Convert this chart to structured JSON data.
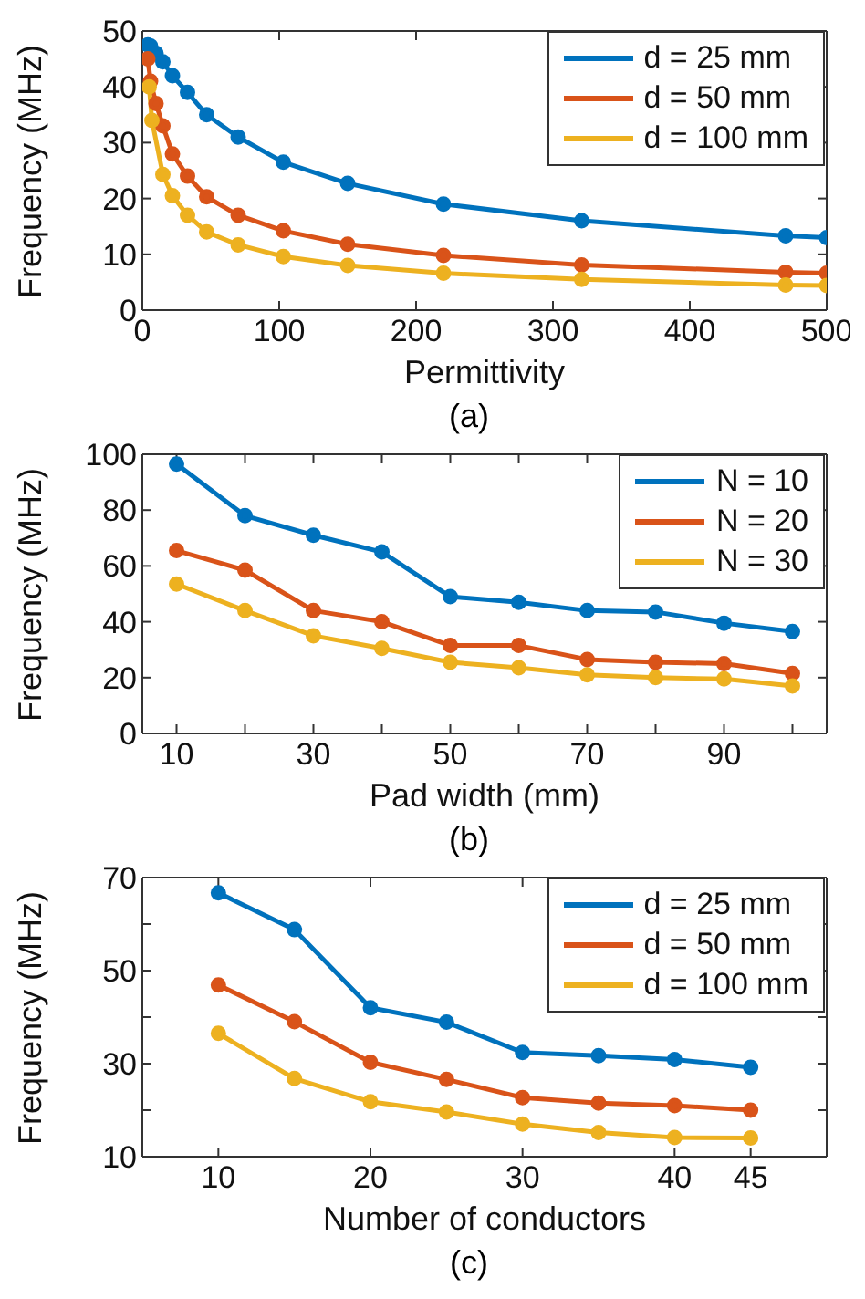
{
  "chart_data": [
    {
      "type": "line",
      "xlabel": "Permittivity",
      "ylabel": "Frequency (MHz)",
      "annotations": [
        "(a)"
      ],
      "xlim": [
        0,
        500
      ],
      "xticks": [
        0,
        100,
        200,
        300,
        400,
        500
      ],
      "ylim": [
        0,
        50
      ],
      "yticks": [
        0,
        10,
        20,
        30,
        40,
        50
      ],
      "grid": false,
      "legend": "top right",
      "marker": "circle",
      "line_style": "solid",
      "series": [
        {
          "name": "d = 25 mm",
          "color": "#0072bd",
          "x": [
            4,
            6,
            10,
            15,
            22,
            33,
            47,
            70,
            103,
            150,
            220,
            321,
            470,
            500
          ],
          "values": [
            47.5,
            47.3,
            46,
            44.5,
            42,
            39,
            35,
            31,
            26.5,
            22.7,
            19,
            16,
            13.3,
            13
          ]
        },
        {
          "name": "d = 50 mm",
          "color": "#d95319",
          "x": [
            4,
            6,
            10,
            15,
            22,
            33,
            47,
            70,
            103,
            150,
            220,
            321,
            470,
            500
          ],
          "values": [
            45,
            41,
            37,
            33,
            28,
            24,
            20.3,
            17,
            14.2,
            11.8,
            9.8,
            8.1,
            6.8,
            6.6
          ]
        },
        {
          "name": "d = 100 mm",
          "color": "#edb120",
          "x": [
            5,
            7,
            15,
            22,
            33,
            47,
            70,
            103,
            150,
            220,
            321,
            470,
            500
          ],
          "values": [
            40,
            34,
            24.3,
            20.5,
            17,
            14,
            11.7,
            9.6,
            8,
            6.6,
            5.5,
            4.5,
            4.4
          ]
        }
      ]
    },
    {
      "type": "line",
      "xlabel": "Pad width (mm)",
      "ylabel": "Frequency (MHz)",
      "annotations": [
        "(b)"
      ],
      "xlim": [
        5,
        105
      ],
      "xticks": [
        10,
        {
          "value": 20,
          "label": null
        },
        30,
        {
          "value": 40,
          "label": null
        },
        50,
        {
          "value": 60,
          "label": null
        },
        70,
        {
          "value": 80,
          "label": null
        },
        90,
        {
          "value": 100,
          "label": null
        }
      ],
      "ylim": [
        0,
        100
      ],
      "yticks": [
        0,
        20,
        40,
        60,
        80,
        100
      ],
      "grid": false,
      "legend": "top right",
      "marker": "circle",
      "line_style": "solid",
      "series": [
        {
          "name": "N = 10",
          "color": "#0072bd",
          "x": [
            10,
            20,
            30,
            40,
            50,
            60,
            70,
            80,
            90,
            100
          ],
          "values": [
            96.5,
            78,
            71,
            65,
            49,
            47,
            44,
            43.5,
            39.5,
            36.5
          ]
        },
        {
          "name": "N = 20",
          "color": "#d95319",
          "x": [
            10,
            20,
            30,
            40,
            50,
            60,
            70,
            80,
            90,
            100
          ],
          "values": [
            65.5,
            58.5,
            44,
            40,
            31.5,
            31.5,
            26.5,
            25.5,
            25,
            21.5
          ]
        },
        {
          "name": "N = 30",
          "color": "#edb120",
          "x": [
            10,
            20,
            30,
            40,
            50,
            60,
            70,
            80,
            90,
            100
          ],
          "values": [
            53.5,
            44,
            35,
            30.5,
            25.5,
            23.5,
            21,
            20,
            19.5,
            17
          ]
        }
      ]
    },
    {
      "type": "line",
      "xlabel": "Number of conductors",
      "ylabel": "Frequency (MHz)",
      "annotations": [
        "(c)"
      ],
      "xlim": [
        5,
        50
      ],
      "xticks": [
        10,
        20,
        30,
        40,
        45
      ],
      "ylim": [
        10,
        70
      ],
      "yticks": [
        10,
        {
          "value": 20,
          "label": null
        },
        30,
        {
          "value": 40,
          "label": null
        },
        50,
        {
          "value": 60,
          "label": null
        },
        70
      ],
      "grid": false,
      "legend": "top right",
      "marker": "circle",
      "line_style": "solid",
      "series": [
        {
          "name": "d = 25 mm",
          "color": "#0072bd",
          "x": [
            10,
            15,
            20,
            25,
            30,
            35,
            40,
            45
          ],
          "values": [
            66.7,
            58.8,
            42,
            38.9,
            32.4,
            31.7,
            30.9,
            29.2
          ]
        },
        {
          "name": "d = 50 mm",
          "color": "#d95319",
          "x": [
            10,
            15,
            20,
            25,
            30,
            35,
            40,
            45
          ],
          "values": [
            46.9,
            39,
            30.3,
            26.6,
            22.7,
            21.5,
            21,
            20
          ]
        },
        {
          "name": "d = 100 mm",
          "color": "#edb120",
          "x": [
            10,
            15,
            20,
            25,
            30,
            35,
            40,
            45
          ],
          "values": [
            36.5,
            26.8,
            21.8,
            19.6,
            17,
            15.2,
            14.1,
            14
          ]
        }
      ]
    }
  ]
}
